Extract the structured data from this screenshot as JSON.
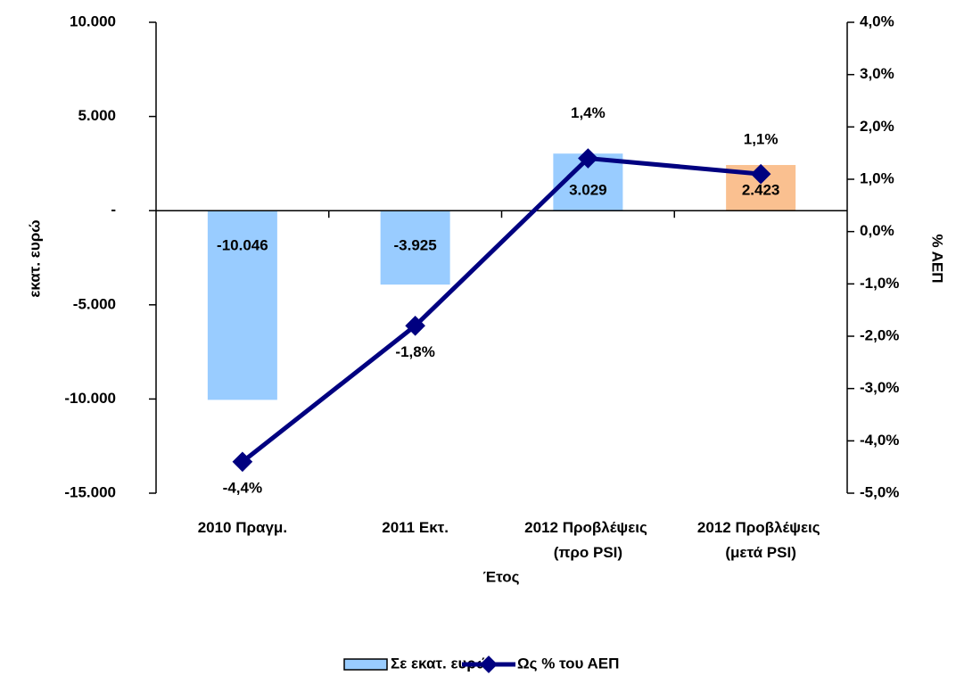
{
  "chart_data": {
    "type": "bar_line",
    "y_label": "εκατ. ευρώ",
    "y2_label": "% ΑΕΠ",
    "x_label": "Έτος",
    "categories": [
      "2010 Πραγμ.",
      "2011 Εκτ.",
      "2012 Προβλέψεις (προ PSI)",
      "2012 Προβλέψεις (μετά PSI)"
    ],
    "series": [
      {
        "name": "Σε εκατ. ευρώ",
        "type": "bar",
        "color": "#99ccff",
        "colors": [
          "#99ccff",
          "#99ccff",
          "#99ccff",
          "#fac090"
        ],
        "values": [
          -10046,
          -3925,
          3029,
          2423
        ],
        "value_labels": [
          "-10.046",
          "-3.925",
          "3.029",
          "2.423"
        ]
      },
      {
        "name": "Ως % του ΑΕΠ",
        "type": "line",
        "axis": "y2",
        "color": "#000080",
        "values": [
          -4.4,
          -1.8,
          1.4,
          1.1
        ],
        "value_labels": [
          "-4,4%",
          "-1,8%",
          "1,4%",
          "1,1%"
        ]
      }
    ],
    "ylim": [
      -15000,
      10000
    ],
    "yticks": [
      {
        "value": -15000,
        "label": "-15.000"
      },
      {
        "value": -10000,
        "label": "-10.000"
      },
      {
        "value": -5000,
        "label": "-5.000"
      },
      {
        "value": 0,
        "label": "-"
      },
      {
        "value": 5000,
        "label": "5.000"
      },
      {
        "value": 10000,
        "label": "10.000"
      }
    ],
    "y2lim": [
      -5,
      4
    ],
    "y2ticks": [
      {
        "value": -5,
        "label": "-5,0%"
      },
      {
        "value": -4,
        "label": "-4,0%"
      },
      {
        "value": -3,
        "label": "-3,0%"
      },
      {
        "value": -2,
        "label": "-2,0%"
      },
      {
        "value": -1,
        "label": "-1,0%"
      },
      {
        "value": 0,
        "label": "0,0%"
      },
      {
        "value": 1,
        "label": "1,0%"
      },
      {
        "value": 2,
        "label": "2,0%"
      },
      {
        "value": 3,
        "label": "3,0%"
      },
      {
        "value": 4,
        "label": "4,0%"
      }
    ]
  }
}
